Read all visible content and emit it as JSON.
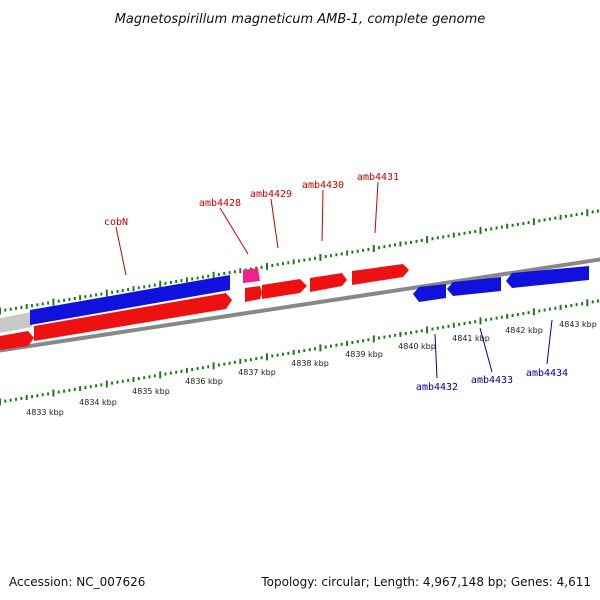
{
  "title": "Magnetospirillum magneticum AMB-1, complete genome",
  "footer": {
    "accession": "Accession: NC_007626",
    "stats": "Topology: circular; Length: 4,967,148 bp; Genes: 4,611"
  },
  "colors": {
    "forward_gene": "#ee1111",
    "reverse_gene": "#1111dd",
    "rna_gene": "#ee2288",
    "backbone": "#888888",
    "tick": "#1a7a1a",
    "forward_label": "#cc0000",
    "reverse_label": "#000099"
  },
  "kbp_labels": [
    "4833 kbp",
    "4834 kbp",
    "4835 kbp",
    "4836 kbp",
    "4837 kbp",
    "4838 kbp",
    "4839 kbp",
    "4840 kbp",
    "4841 kbp",
    "4842 kbp",
    "4843 kbp"
  ],
  "forward_gene_labels": [
    "cobN",
    "amb4428",
    "amb4429",
    "amb4430",
    "amb4431"
  ],
  "reverse_gene_labels": [
    "amb4432",
    "amb4433",
    "amb4434"
  ]
}
